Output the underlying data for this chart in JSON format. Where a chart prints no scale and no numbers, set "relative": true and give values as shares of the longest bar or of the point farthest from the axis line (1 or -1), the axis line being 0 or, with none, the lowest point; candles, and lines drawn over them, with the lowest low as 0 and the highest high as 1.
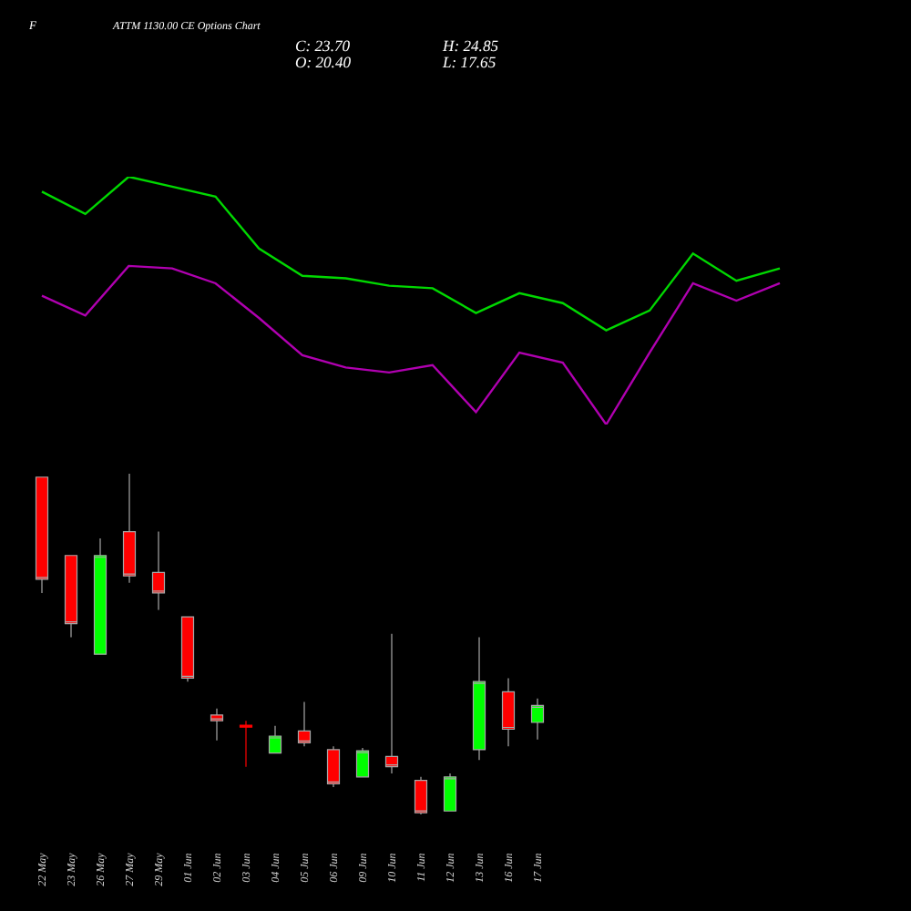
{
  "chart_data": [
    {
      "type": "line",
      "relative": true,
      "categories": [
        null,
        null,
        null,
        null,
        null,
        null,
        null,
        null,
        null,
        null,
        null,
        null,
        null,
        null,
        null,
        null,
        null,
        null
      ],
      "series": [
        {
          "color": "#00d800",
          "values": [
            0.94,
            0.85,
            1.0,
            0.96,
            0.92,
            0.71,
            0.6,
            0.59,
            0.56,
            0.55,
            0.45,
            0.53,
            0.49,
            0.38,
            0.46,
            0.69,
            0.58,
            0.63
          ]
        },
        {
          "color": "#b000b0",
          "values": [
            0.52,
            0.44,
            0.64,
            0.63,
            0.57,
            0.43,
            0.28,
            0.23,
            0.21,
            0.24,
            0.05,
            0.29,
            0.25,
            0,
            0.29,
            0.57,
            0.5,
            0.57
          ]
        }
      ]
    },
    {
      "type": "candlestick",
      "relative": true,
      "annotations": [
        "C: 23.70",
        "O: 20.40",
        "H: 24.85",
        "L: 17.65"
      ],
      "categories": [
        "22 May",
        "23 May",
        "26 May",
        "27 May",
        "29 May",
        "01 Jun",
        "02 Jun",
        "03 Jun",
        "04 Jun",
        "05 Jun",
        "06 Jun",
        "09 Jun",
        "10 Jun",
        "11 Jun",
        "12 Jun",
        "13 Jun",
        "16 Jun",
        "17 Jun"
      ],
      "ohlc": [
        [
          0.99,
          0.99,
          0.65,
          0.69
        ],
        [
          0.76,
          0.76,
          0.52,
          0.56
        ],
        [
          0.47,
          0.81,
          0.47,
          0.76
        ],
        [
          0.83,
          1,
          0.68,
          0.7
        ],
        [
          0.71,
          0.83,
          0.6,
          0.65
        ],
        [
          0.58,
          0.58,
          0.39,
          0.4
        ],
        [
          0.292,
          0.311,
          0.217,
          0.275
        ],
        [
          0.262,
          0.275,
          0.14,
          0.256
        ],
        [
          0.18,
          0.26,
          0.18,
          0.23
        ],
        [
          0.245,
          0.33,
          0.2,
          0.21
        ],
        [
          0.19,
          0.2,
          0.08,
          0.09
        ],
        [
          0.11,
          0.195,
          0.11,
          0.187
        ],
        [
          0.17,
          0.53,
          0.12,
          0.14
        ],
        [
          0.1,
          0.11,
          0,
          0.005
        ],
        [
          0.01,
          0.12,
          0.01,
          0.11
        ],
        [
          0.19,
          0.52,
          0.16,
          0.39
        ],
        [
          0.36,
          0.4,
          0.2,
          0.25
        ],
        [
          0.27,
          0.34,
          0.22,
          0.32
        ]
      ],
      "colors": [
        "#ff0000",
        "#ff0000",
        "#00ff00",
        "#ff0000",
        "#ff0000",
        "#ff0000",
        "#ff0000",
        "#ff0000",
        "#00ff00",
        "#ff0000",
        "#ff0000",
        "#00ff00",
        "#ff0000",
        "#ff0000",
        "#00ff00",
        "#00ff00",
        "#ff0000",
        "#00ff00"
      ]
    },
    {
      "type": "other",
      "title": "ATTM 1130.00 CE Options Chart",
      "annotations": [
        "F"
      ]
    }
  ]
}
